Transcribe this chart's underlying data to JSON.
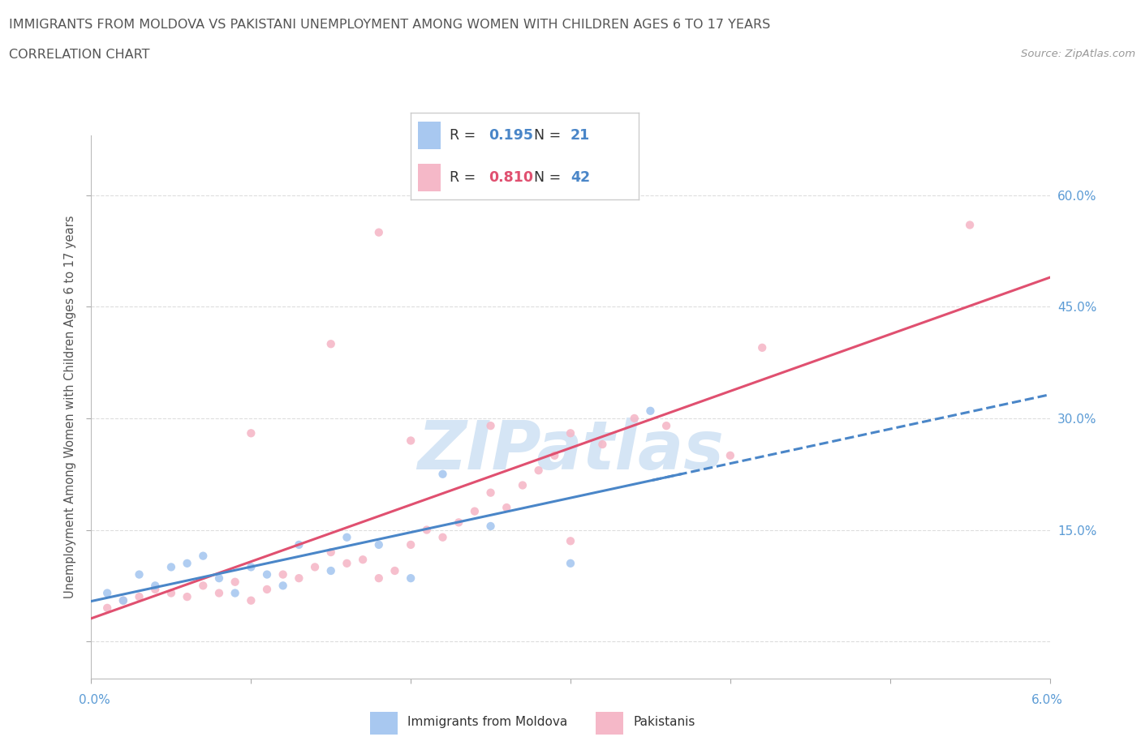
{
  "title": "IMMIGRANTS FROM MOLDOVA VS PAKISTANI UNEMPLOYMENT AMONG WOMEN WITH CHILDREN AGES 6 TO 17 YEARS",
  "subtitle": "CORRELATION CHART",
  "source": "Source: ZipAtlas.com",
  "ylabel_left": "Unemployment Among Women with Children Ages 6 to 17 years",
  "y_ticks": [
    0.0,
    0.15,
    0.3,
    0.45,
    0.6
  ],
  "y_tick_labels": [
    "",
    "15.0%",
    "30.0%",
    "45.0%",
    "60.0%"
  ],
  "watermark": "ZIPatlas",
  "moldova": {
    "name": "Immigrants from Moldova",
    "R": 0.195,
    "N": 21,
    "color": "#a8c8f0",
    "line_color": "#4a86c8",
    "line_style": "--",
    "x": [
      0.001,
      0.002,
      0.003,
      0.004,
      0.005,
      0.006,
      0.007,
      0.008,
      0.009,
      0.01,
      0.011,
      0.012,
      0.013,
      0.015,
      0.016,
      0.018,
      0.02,
      0.022,
      0.025,
      0.03,
      0.035
    ],
    "y": [
      0.065,
      0.055,
      0.09,
      0.075,
      0.1,
      0.105,
      0.115,
      0.085,
      0.065,
      0.1,
      0.09,
      0.075,
      0.13,
      0.095,
      0.14,
      0.13,
      0.085,
      0.225,
      0.155,
      0.105,
      0.31
    ]
  },
  "pakistan": {
    "name": "Pakistanis",
    "R": 0.81,
    "N": 42,
    "color": "#f5b8c8",
    "line_color": "#e05070",
    "line_style": "-",
    "x": [
      0.001,
      0.002,
      0.003,
      0.004,
      0.005,
      0.006,
      0.007,
      0.008,
      0.009,
      0.01,
      0.011,
      0.012,
      0.013,
      0.014,
      0.015,
      0.016,
      0.017,
      0.018,
      0.019,
      0.02,
      0.021,
      0.022,
      0.023,
      0.024,
      0.025,
      0.026,
      0.027,
      0.028,
      0.029,
      0.03,
      0.032,
      0.034,
      0.036,
      0.04,
      0.042,
      0.02,
      0.025,
      0.03,
      0.01,
      0.015,
      0.018,
      0.055
    ],
    "y": [
      0.045,
      0.055,
      0.06,
      0.07,
      0.065,
      0.06,
      0.075,
      0.065,
      0.08,
      0.055,
      0.07,
      0.09,
      0.085,
      0.1,
      0.12,
      0.105,
      0.11,
      0.085,
      0.095,
      0.13,
      0.15,
      0.14,
      0.16,
      0.175,
      0.2,
      0.18,
      0.21,
      0.23,
      0.25,
      0.28,
      0.265,
      0.3,
      0.29,
      0.25,
      0.395,
      0.27,
      0.29,
      0.135,
      0.28,
      0.4,
      0.55,
      0.56
    ]
  },
  "xlim": [
    0.0,
    0.06
  ],
  "ylim": [
    -0.05,
    0.68
  ],
  "background_color": "#ffffff",
  "grid_color": "#dddddd",
  "title_color": "#555555",
  "axis_color": "#5b9bd5",
  "watermark_color": "#d5e5f5",
  "legend_moldova_r_color": "#4a86c8",
  "legend_pakistan_r_color": "#e05070",
  "legend_n_color": "#4a86c8"
}
